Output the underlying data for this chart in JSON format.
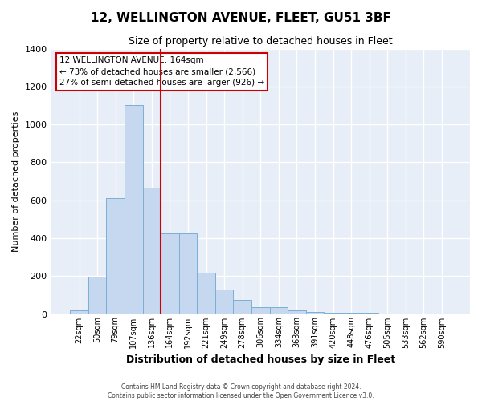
{
  "title1": "12, WELLINGTON AVENUE, FLEET, GU51 3BF",
  "title2": "Size of property relative to detached houses in Fleet",
  "xlabel": "Distribution of detached houses by size in Fleet",
  "ylabel": "Number of detached properties",
  "categories": [
    "22sqm",
    "50sqm",
    "79sqm",
    "107sqm",
    "136sqm",
    "164sqm",
    "192sqm",
    "221sqm",
    "249sqm",
    "278sqm",
    "306sqm",
    "334sqm",
    "363sqm",
    "391sqm",
    "420sqm",
    "448sqm",
    "476sqm",
    "505sqm",
    "533sqm",
    "562sqm",
    "590sqm"
  ],
  "values": [
    20,
    195,
    610,
    1100,
    665,
    425,
    425,
    220,
    130,
    75,
    35,
    35,
    20,
    10,
    5,
    5,
    5,
    0,
    0,
    0,
    0
  ],
  "bar_color": "#C5D8EF",
  "bar_edge_color": "#7BAFD4",
  "vline_color": "#CC0000",
  "vline_x": 4.5,
  "annotation_line1": "12 WELLINGTON AVENUE: 164sqm",
  "annotation_line2": "← 73% of detached houses are smaller (2,566)",
  "annotation_line3": "27% of semi-detached houses are larger (926) →",
  "annotation_box_edgecolor": "#CC0000",
  "ylim": [
    0,
    1400
  ],
  "yticks": [
    0,
    200,
    400,
    600,
    800,
    1000,
    1200,
    1400
  ],
  "bg_color": "#E8EEF7",
  "grid_color": "#FFFFFF",
  "footer1": "Contains HM Land Registry data © Crown copyright and database right 2024.",
  "footer2": "Contains public sector information licensed under the Open Government Licence v3.0."
}
